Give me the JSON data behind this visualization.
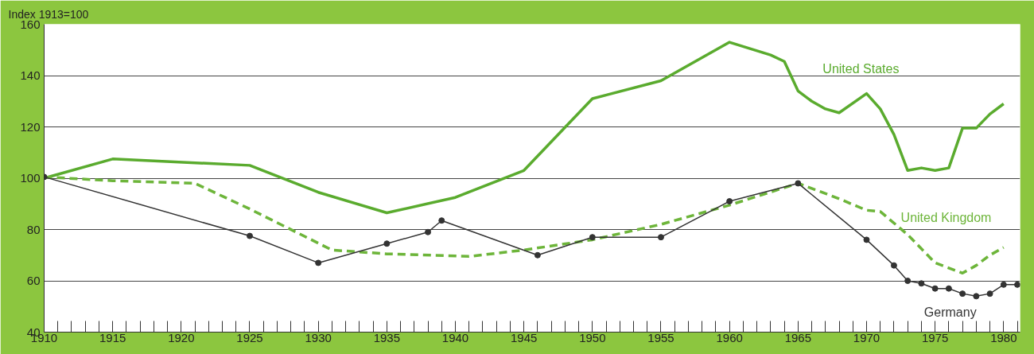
{
  "chart_data": {
    "type": "line",
    "ylabel": "Index 1913=100",
    "xlim": [
      1910,
      1981.2
    ],
    "ylim": [
      40,
      160
    ],
    "yticks": [
      40,
      60,
      80,
      100,
      120,
      140,
      160
    ],
    "xticks": [
      1910,
      {
        "value": 1911,
        "label": null
      },
      {
        "value": 1912,
        "label": null
      },
      {
        "value": 1913,
        "label": null
      },
      {
        "value": 1914,
        "label": null
      },
      1915,
      {
        "value": 1916,
        "label": null
      },
      {
        "value": 1917,
        "label": null
      },
      {
        "value": 1918,
        "label": null
      },
      {
        "value": 1919,
        "label": null
      },
      1920,
      {
        "value": 1921,
        "label": null
      },
      {
        "value": 1922,
        "label": null
      },
      {
        "value": 1923,
        "label": null
      },
      {
        "value": 1924,
        "label": null
      },
      1925,
      {
        "value": 1926,
        "label": null
      },
      {
        "value": 1927,
        "label": null
      },
      {
        "value": 1928,
        "label": null
      },
      {
        "value": 1929,
        "label": null
      },
      1930,
      {
        "value": 1931,
        "label": null
      },
      {
        "value": 1932,
        "label": null
      },
      {
        "value": 1933,
        "label": null
      },
      {
        "value": 1934,
        "label": null
      },
      1935,
      {
        "value": 1936,
        "label": null
      },
      {
        "value": 1937,
        "label": null
      },
      {
        "value": 1938,
        "label": null
      },
      {
        "value": 1939,
        "label": null
      },
      1940,
      {
        "value": 1941,
        "label": null
      },
      {
        "value": 1942,
        "label": null
      },
      {
        "value": 1943,
        "label": null
      },
      {
        "value": 1944,
        "label": null
      },
      1945,
      {
        "value": 1946,
        "label": null
      },
      {
        "value": 1947,
        "label": null
      },
      {
        "value": 1948,
        "label": null
      },
      {
        "value": 1949,
        "label": null
      },
      1950,
      {
        "value": 1951,
        "label": null
      },
      {
        "value": 1952,
        "label": null
      },
      {
        "value": 1953,
        "label": null
      },
      {
        "value": 1954,
        "label": null
      },
      1955,
      {
        "value": 1956,
        "label": null
      },
      {
        "value": 1957,
        "label": null
      },
      {
        "value": 1958,
        "label": null
      },
      {
        "value": 1959,
        "label": null
      },
      1960,
      {
        "value": 1961,
        "label": null
      },
      {
        "value": 1962,
        "label": null
      },
      {
        "value": 1963,
        "label": null
      },
      {
        "value": 1964,
        "label": null
      },
      1965,
      {
        "value": 1966,
        "label": null
      },
      {
        "value": 1967,
        "label": null
      },
      {
        "value": 1968,
        "label": null
      },
      {
        "value": 1969,
        "label": null
      },
      1970,
      {
        "value": 1971,
        "label": null
      },
      {
        "value": 1972,
        "label": null
      },
      {
        "value": 1973,
        "label": null
      },
      {
        "value": 1974,
        "label": null
      },
      1975,
      {
        "value": 1976,
        "label": null
      },
      {
        "value": 1977,
        "label": null
      },
      {
        "value": 1978,
        "label": null
      },
      {
        "value": 1979,
        "label": null
      },
      1980,
      {
        "value": 1981,
        "label": null
      }
    ],
    "grid": "y",
    "series": [
      {
        "name": "United States",
        "color": "#5aab2e",
        "line_style": "solid",
        "marker": "none",
        "x": [
          1910,
          1915,
          1925,
          1930,
          1935,
          1940,
          1945,
          1950,
          1955,
          1960,
          1963,
          1964,
          1965,
          1966,
          1967,
          1968,
          1970,
          1971,
          1972,
          1973,
          1974,
          1975,
          1976,
          1977,
          1978,
          1979,
          1980
        ],
        "values": [
          100,
          107.5,
          105,
          94.5,
          86.5,
          92.5,
          103,
          131,
          138,
          153,
          148,
          145.5,
          134,
          130,
          127,
          125.5,
          133,
          127,
          117,
          103,
          104,
          103,
          104,
          119.5,
          119.5,
          125,
          129
        ]
      },
      {
        "name": "United Kingdom",
        "color": "#6db53a",
        "line_style": "dashed",
        "marker": "none",
        "x": [
          1910,
          1915,
          1921,
          1925,
          1931,
          1935,
          1941,
          1945,
          1950,
          1955,
          1960,
          1965,
          1966,
          1968,
          1970,
          1971,
          1973,
          1975,
          1977,
          1978,
          1979,
          1980
        ],
        "values": [
          100.5,
          99,
          98,
          88,
          72,
          70.5,
          69.5,
          72,
          76,
          82,
          89.5,
          98,
          96,
          92,
          87.5,
          87,
          78,
          67,
          63,
          66,
          70,
          73
        ]
      },
      {
        "name": "Germany",
        "color": "#333333",
        "line_style": "solid",
        "marker": "circle",
        "x": [
          1910,
          1925,
          1930,
          1935,
          1938,
          1939,
          1946,
          1950,
          1955,
          1960,
          1965,
          1970,
          1972,
          1973,
          1974,
          1975,
          1976,
          1977,
          1978,
          1979,
          1980,
          1981
        ],
        "values": [
          100.5,
          77.5,
          67,
          74.5,
          79,
          83.5,
          70,
          77,
          77,
          91,
          98,
          76,
          66,
          60,
          59,
          57,
          57,
          55,
          54,
          55,
          58.5,
          58.5
        ]
      }
    ]
  }
}
